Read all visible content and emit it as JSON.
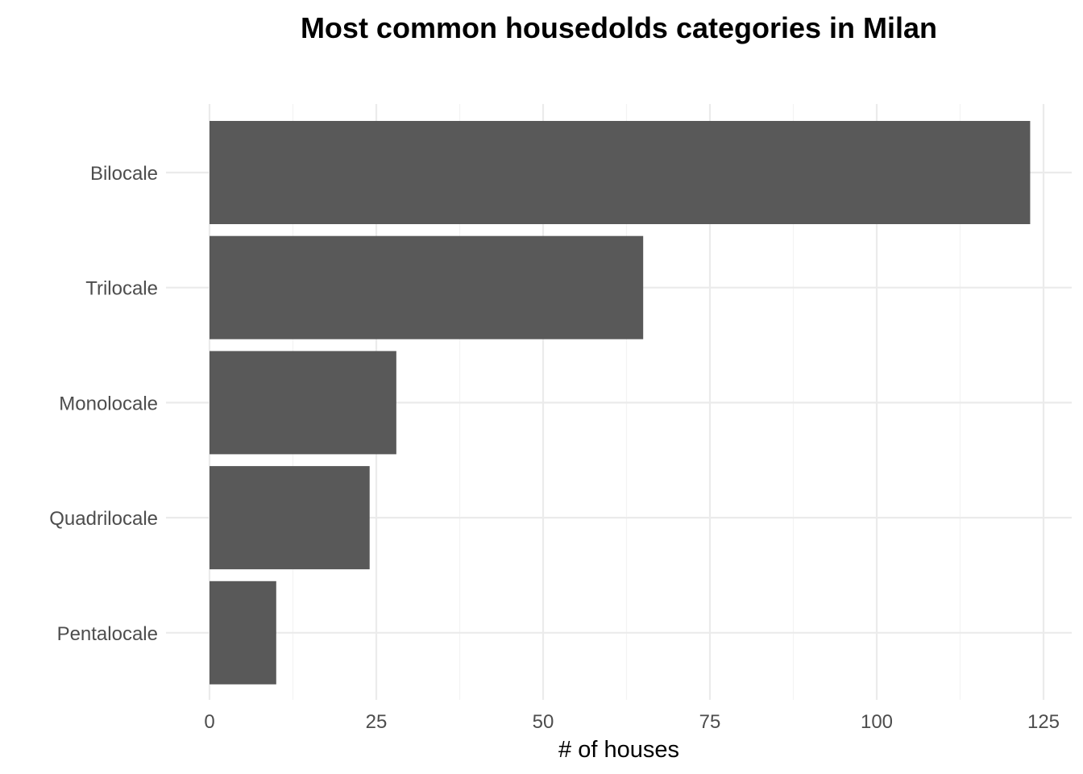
{
  "chart_data": {
    "type": "bar",
    "orientation": "horizontal",
    "title": "Most common housedolds categories in Milan",
    "xlabel": "# of houses",
    "ylabel": "",
    "categories": [
      "Bilocale",
      "Trilocale",
      "Monolocale",
      "Quadrilocale",
      "Pentalocale"
    ],
    "values": [
      123,
      65,
      28,
      24,
      10
    ],
    "xlim": [
      0,
      129
    ],
    "x_ticks": [
      0,
      25,
      50,
      75,
      100,
      125
    ],
    "x_tick_labels": [
      "0",
      "25",
      "50",
      "75",
      "100",
      "125"
    ],
    "grid": true,
    "legend": "none",
    "colors": {
      "bar": "#595959",
      "grid_major": "#ebebeb",
      "grid_minor": "#f3f3f3",
      "tick_label": "#4d4d4d",
      "title": "#000000"
    }
  }
}
